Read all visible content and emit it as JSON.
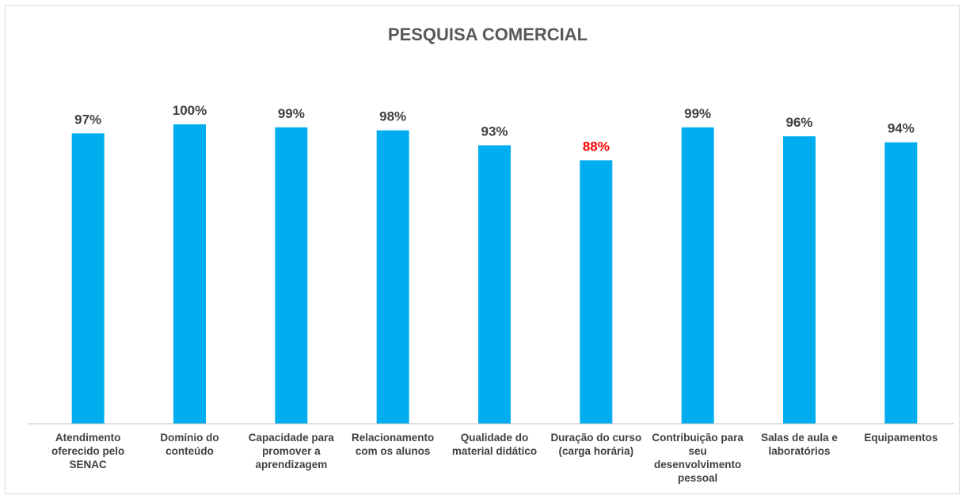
{
  "chart_data": {
    "type": "bar",
    "title": "PESQUISA COMERCIAL",
    "categories": [
      [
        "Atendimento",
        "oferecido pelo",
        "SENAC"
      ],
      [
        "Domínio do",
        "conteúdo"
      ],
      [
        "Capacidade para",
        "promover a",
        "aprendizagem"
      ],
      [
        "Relacionamento",
        "com os alunos"
      ],
      [
        "Qualidade do",
        "material didático"
      ],
      [
        "Duração do curso",
        "(carga horária)"
      ],
      [
        "Contribuição para",
        "seu",
        "desenvolvimento",
        "pessoal"
      ],
      [
        "Salas de aula e",
        "laboratórios"
      ],
      [
        "Equipamentos"
      ]
    ],
    "values": [
      97,
      100,
      99,
      98,
      93,
      88,
      99,
      96,
      94
    ],
    "data_labels": [
      "97%",
      "100%",
      "99%",
      "98%",
      "93%",
      "88%",
      "99%",
      "96%",
      "94%"
    ],
    "highlight_index": 5,
    "ylim": [
      0,
      100
    ],
    "grid": false,
    "legend": "none",
    "colors": {
      "bar": "#00AEEF",
      "label": "#404040",
      "highlight_label": "#FF0000",
      "axis": "#bfbfbf"
    }
  }
}
